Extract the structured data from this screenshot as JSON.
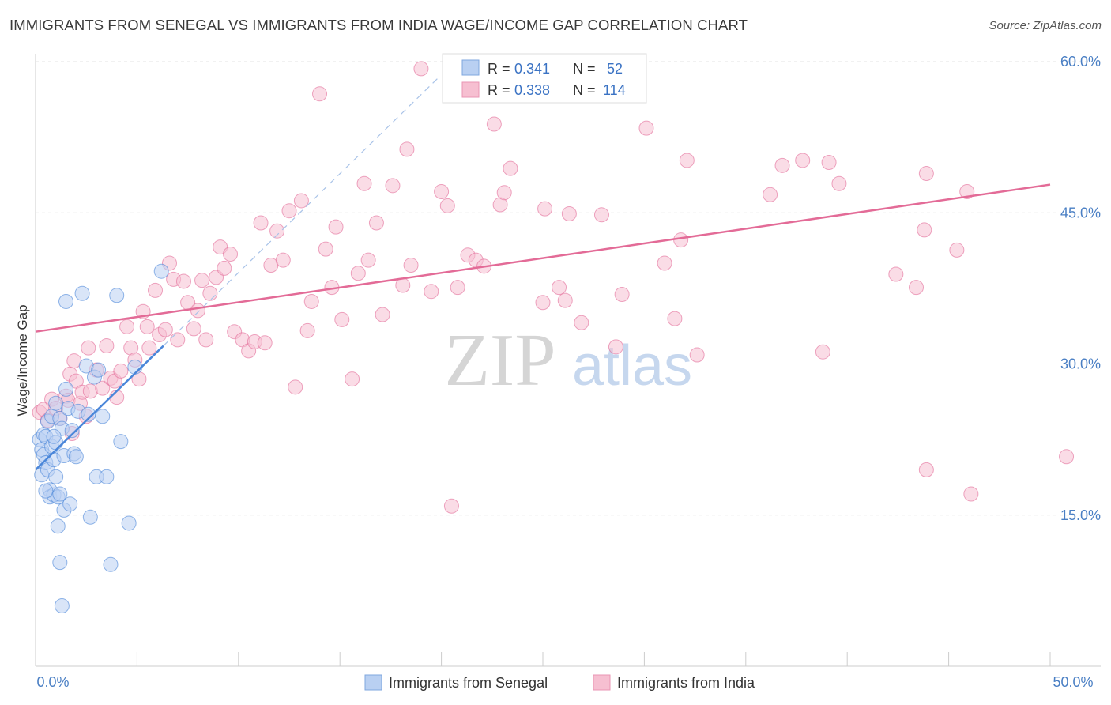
{
  "title": "IMMIGRANTS FROM SENEGAL VS IMMIGRANTS FROM INDIA WAGE/INCOME GAP CORRELATION CHART",
  "source": "Source: ZipAtlas.com",
  "watermark": {
    "zip": "ZIP",
    "atlas": "atlas"
  },
  "chart_data": {
    "type": "scatter",
    "ylabel": "Wage/Income Gap",
    "xlim": [
      0,
      50
    ],
    "ylim": [
      0,
      60
    ],
    "y_ticks": [
      {
        "value": 15,
        "label": "15.0%"
      },
      {
        "value": 30,
        "label": "30.0%"
      },
      {
        "value": 45,
        "label": "45.0%"
      },
      {
        "value": 60,
        "label": "60.0%"
      }
    ],
    "x_tick_labels": {
      "min": "0.0%",
      "max": "50.0%"
    },
    "grid": true,
    "legend_placement": "top-center",
    "series": [
      {
        "name": "Immigrants from Senegal",
        "color": "#4a86d9",
        "fill": "#b9d0f2",
        "R_label": "R =",
        "R": "0.341",
        "N_label": "N =",
        "N": "52",
        "trend": {
          "x0": 0,
          "y0": 19.5,
          "x1": 6.3,
          "y1": 31.8,
          "dash_x1": 19.9,
          "dash_y1": 58.5
        },
        "points": [
          [
            0.2,
            22.5
          ],
          [
            0.3,
            21.5
          ],
          [
            0.3,
            19
          ],
          [
            0.4,
            23
          ],
          [
            0.4,
            21
          ],
          [
            0.5,
            20.2
          ],
          [
            0.5,
            22.8
          ],
          [
            0.6,
            24.3
          ],
          [
            0.6,
            19.5
          ],
          [
            0.7,
            17.5
          ],
          [
            0.7,
            16.8
          ],
          [
            0.8,
            21.8
          ],
          [
            0.8,
            24.8
          ],
          [
            0.9,
            17
          ],
          [
            0.9,
            20.5
          ],
          [
            1.0,
            18.8
          ],
          [
            1.0,
            22.2
          ],
          [
            1.1,
            16.8
          ],
          [
            1.1,
            13.9
          ],
          [
            1.2,
            24.6
          ],
          [
            1.2,
            10.3
          ],
          [
            1.3,
            6
          ],
          [
            1.3,
            23.6
          ],
          [
            1.4,
            15.5
          ],
          [
            1.4,
            20.9
          ],
          [
            1.5,
            27.5
          ],
          [
            1.5,
            36.2
          ],
          [
            1.6,
            25.6
          ],
          [
            1.7,
            16.1
          ],
          [
            1.8,
            23.4
          ],
          [
            1.9,
            21.1
          ],
          [
            2.0,
            20.8
          ],
          [
            2.1,
            25.3
          ],
          [
            2.3,
            37
          ],
          [
            2.5,
            29.8
          ],
          [
            2.6,
            25
          ],
          [
            2.7,
            14.8
          ],
          [
            2.9,
            28.7
          ],
          [
            3.0,
            18.8
          ],
          [
            3.1,
            29.4
          ],
          [
            3.3,
            24.8
          ],
          [
            3.5,
            18.8
          ],
          [
            3.7,
            10.1
          ],
          [
            4.0,
            36.8
          ],
          [
            4.2,
            22.3
          ],
          [
            4.6,
            14.2
          ],
          [
            4.9,
            29.7
          ],
          [
            6.2,
            39.2
          ],
          [
            0.9,
            22.8
          ],
          [
            1.0,
            26.1
          ],
          [
            1.2,
            17.1
          ],
          [
            0.5,
            17.4
          ]
        ]
      },
      {
        "name": "Immigrants from India",
        "color": "#e36b97",
        "fill": "#f6bfd1",
        "R_label": "R =",
        "R": "0.338",
        "N_label": "N =",
        "N": "114",
        "trend": {
          "x0": 0,
          "y0": 33.2,
          "x1": 50,
          "y1": 47.8
        },
        "points": [
          [
            0.2,
            25.2
          ],
          [
            0.4,
            25.5
          ],
          [
            0.6,
            24.4
          ],
          [
            0.8,
            26.5
          ],
          [
            1.0,
            25.6
          ],
          [
            1.2,
            24.6
          ],
          [
            1.5,
            26.8
          ],
          [
            1.6,
            26.4
          ],
          [
            1.7,
            29
          ],
          [
            1.8,
            23.1
          ],
          [
            1.9,
            30.3
          ],
          [
            2.0,
            28.3
          ],
          [
            2.2,
            26.1
          ],
          [
            2.3,
            27.2
          ],
          [
            2.5,
            24.8
          ],
          [
            2.6,
            31.6
          ],
          [
            2.7,
            27.3
          ],
          [
            3.0,
            29.4
          ],
          [
            3.3,
            27.6
          ],
          [
            3.5,
            31.8
          ],
          [
            3.7,
            28.6
          ],
          [
            3.9,
            28.3
          ],
          [
            4.0,
            26.7
          ],
          [
            4.2,
            29.3
          ],
          [
            4.5,
            33.7
          ],
          [
            4.7,
            31.6
          ],
          [
            4.9,
            30.4
          ],
          [
            5.1,
            28.5
          ],
          [
            5.3,
            35.2
          ],
          [
            5.5,
            33.7
          ],
          [
            5.6,
            31.6
          ],
          [
            5.9,
            37.3
          ],
          [
            6.1,
            32.9
          ],
          [
            6.4,
            33.4
          ],
          [
            6.6,
            40
          ],
          [
            6.8,
            38.4
          ],
          [
            7.0,
            32.4
          ],
          [
            7.3,
            38.2
          ],
          [
            7.5,
            36.1
          ],
          [
            7.8,
            33.5
          ],
          [
            8.0,
            35.3
          ],
          [
            8.2,
            38.3
          ],
          [
            8.4,
            32.4
          ],
          [
            8.6,
            37
          ],
          [
            8.9,
            38.6
          ],
          [
            9.1,
            41.6
          ],
          [
            9.3,
            39.5
          ],
          [
            9.6,
            40.9
          ],
          [
            9.8,
            33.2
          ],
          [
            10.2,
            32.4
          ],
          [
            10.5,
            31.3
          ],
          [
            10.8,
            32.2
          ],
          [
            11.1,
            44
          ],
          [
            11.3,
            32.1
          ],
          [
            11.6,
            39.8
          ],
          [
            11.9,
            43.2
          ],
          [
            12.2,
            40.3
          ],
          [
            12.5,
            45.2
          ],
          [
            12.8,
            27.7
          ],
          [
            13.1,
            46.2
          ],
          [
            13.4,
            33.3
          ],
          [
            13.6,
            36.2
          ],
          [
            14.0,
            56.8
          ],
          [
            14.3,
            41.4
          ],
          [
            14.6,
            37.6
          ],
          [
            14.8,
            43.6
          ],
          [
            15.1,
            34.4
          ],
          [
            15.6,
            28.5
          ],
          [
            15.9,
            39
          ],
          [
            16.2,
            47.9
          ],
          [
            16.4,
            40.3
          ],
          [
            16.8,
            44
          ],
          [
            17.1,
            34.9
          ],
          [
            17.6,
            47.7
          ],
          [
            18.1,
            37.8
          ],
          [
            18.3,
            51.3
          ],
          [
            18.5,
            39.8
          ],
          [
            19.0,
            59.3
          ],
          [
            19.5,
            37.2
          ],
          [
            20.0,
            47.1
          ],
          [
            20.3,
            45.7
          ],
          [
            20.5,
            15.9
          ],
          [
            20.8,
            37.6
          ],
          [
            21.3,
            40.8
          ],
          [
            21.7,
            40.3
          ],
          [
            22.1,
            39.7
          ],
          [
            22.6,
            53.8
          ],
          [
            22.9,
            45.8
          ],
          [
            23.1,
            47
          ],
          [
            23.4,
            49.4
          ],
          [
            25.0,
            36.1
          ],
          [
            25.1,
            45.4
          ],
          [
            25.8,
            37.6
          ],
          [
            26.1,
            36.3
          ],
          [
            26.3,
            44.9
          ],
          [
            26.9,
            34.1
          ],
          [
            27.9,
            44.8
          ],
          [
            28.6,
            31.7
          ],
          [
            28.9,
            36.9
          ],
          [
            30.1,
            53.4
          ],
          [
            31.0,
            40
          ],
          [
            31.5,
            34.5
          ],
          [
            31.8,
            42.3
          ],
          [
            32.1,
            50.2
          ],
          [
            32.6,
            30.9
          ],
          [
            36.2,
            46.8
          ],
          [
            36.8,
            49.7
          ],
          [
            37.8,
            50.2
          ],
          [
            38.8,
            31.2
          ],
          [
            39.1,
            50
          ],
          [
            39.6,
            47.9
          ],
          [
            42.4,
            38.9
          ],
          [
            43.4,
            37.6
          ],
          [
            43.8,
            43.3
          ],
          [
            43.9,
            48.9
          ],
          [
            43.9,
            19.5
          ],
          [
            45.4,
            41.3
          ],
          [
            45.9,
            47.1
          ],
          [
            46.1,
            17.1
          ],
          [
            50.8,
            20.8
          ]
        ]
      }
    ]
  }
}
